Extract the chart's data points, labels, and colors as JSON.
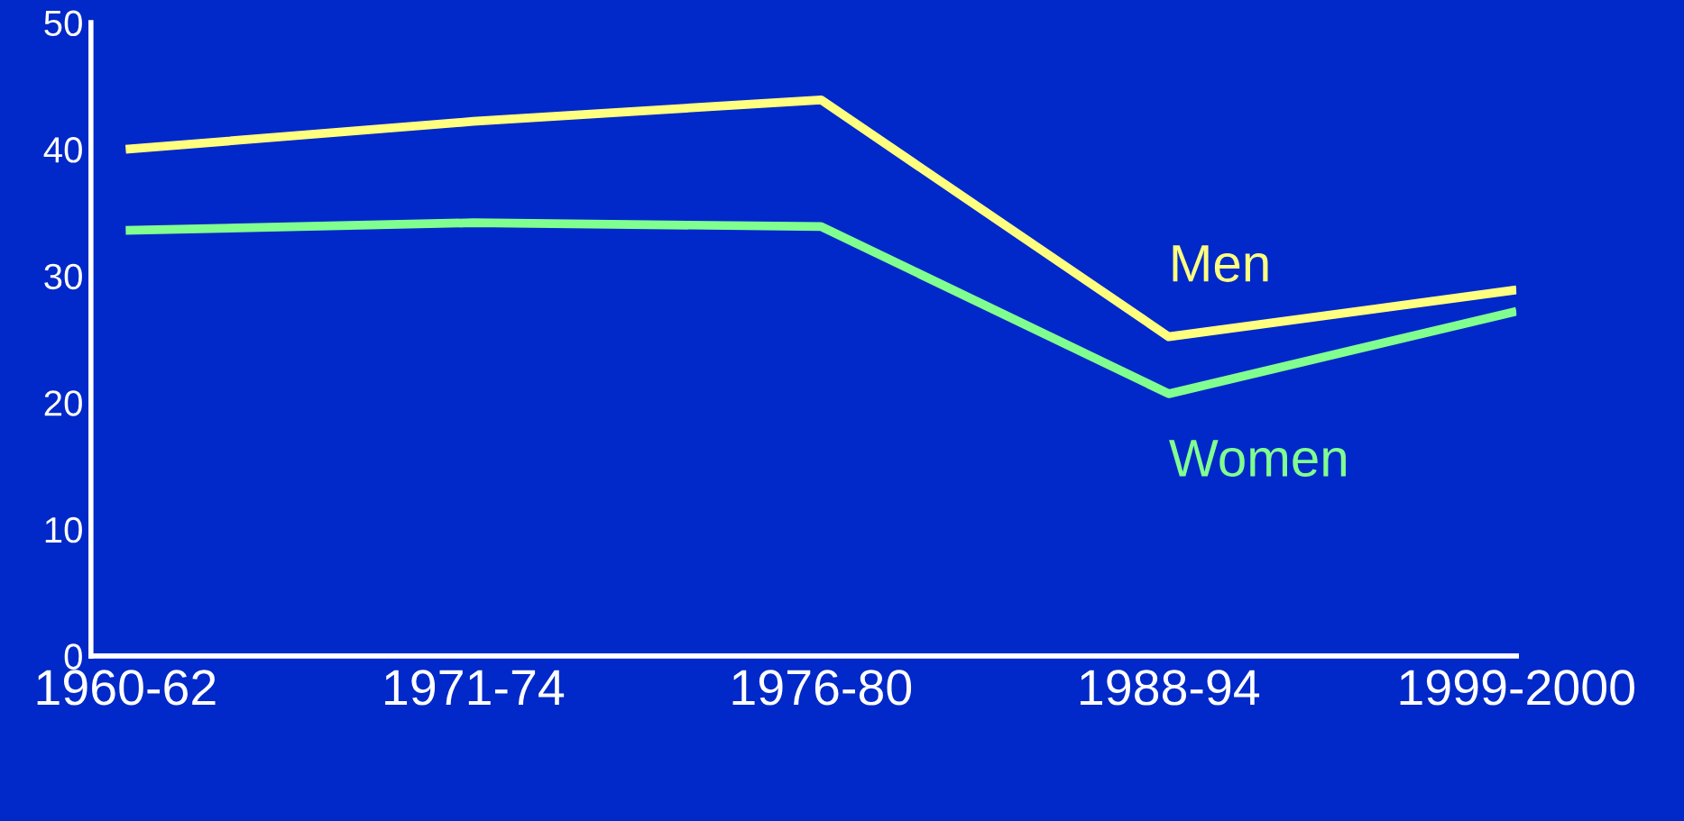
{
  "chart_data": {
    "type": "line",
    "categories": [
      "1960-62",
      "1971-74",
      "1976-80",
      "1988-94",
      "1999-2000"
    ],
    "series": [
      {
        "name": "Men",
        "color": "#ffff80",
        "values": [
          40,
          42.2,
          43.9,
          25.2,
          28.9
        ]
      },
      {
        "name": "Women",
        "color": "#80ff90",
        "values": [
          33.6,
          34.2,
          33.9,
          20.7,
          27.2
        ]
      }
    ],
    "ylim": [
      0,
      50
    ],
    "yticks": [
      0,
      10,
      20,
      30,
      40,
      50
    ],
    "grid": false,
    "marker": "none",
    "line_style": "solid"
  }
}
